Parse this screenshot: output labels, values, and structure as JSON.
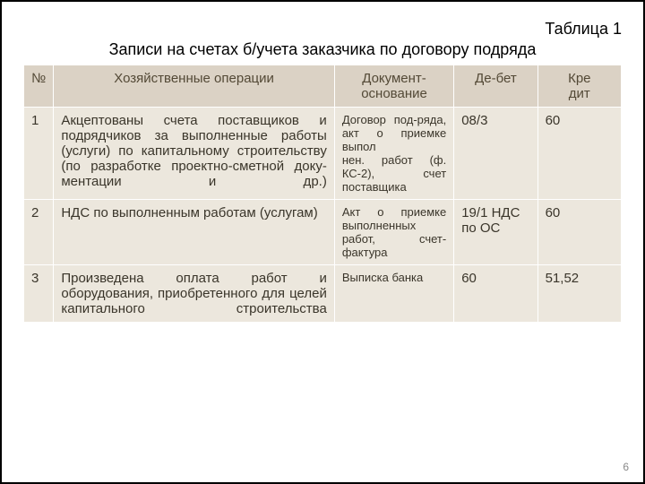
{
  "caption": "Таблица 1",
  "title": "Записи на счетах б/учета заказчика по договору подряда",
  "page_number": "6",
  "colors": {
    "header_bg": "#dbd2c5",
    "header_fg": "#534936",
    "row_bg": "#ece7dd",
    "row_fg": "#3a352a"
  },
  "layout": {
    "col_widths_pct": [
      5,
      47,
      20,
      14,
      14
    ],
    "header_fontsize": 15,
    "row_num_fontsize": 15,
    "ops_fontsize": 15,
    "doc_fontsize": 13,
    "debit_fontsize": 15,
    "credit_fontsize": 15
  },
  "columns": [
    "№",
    "Хозяйственные операции",
    "Документ-основание",
    "Де-бет",
    "Кре\nдит"
  ],
  "rows": [
    {
      "n": "1",
      "op": "Акцептованы счета поставщиков и подрядчиков за выполненные работы (услуги) по капитальному строительству (по разработке проектно-сметной доку-ментации и др.)",
      "doc": "Договор под-ряда, акт о приемке выпол\nнен. работ (ф. КС-2), счет поставщика",
      "debit": "08/3",
      "credit": "60"
    },
    {
      "n": "2",
      "op": "НДС по выполненным работам (услугам)",
      "doc": "Акт о приемке выполненных работ, счет-фактура",
      "debit": "19/1 НДС по ОС",
      "credit": "60"
    },
    {
      "n": "3",
      "op": "Произведена оплата работ и оборудования, приобретенного для целей капитального строительства",
      "doc": "Выписка банка",
      "debit": "60",
      "credit": "51,52"
    }
  ]
}
